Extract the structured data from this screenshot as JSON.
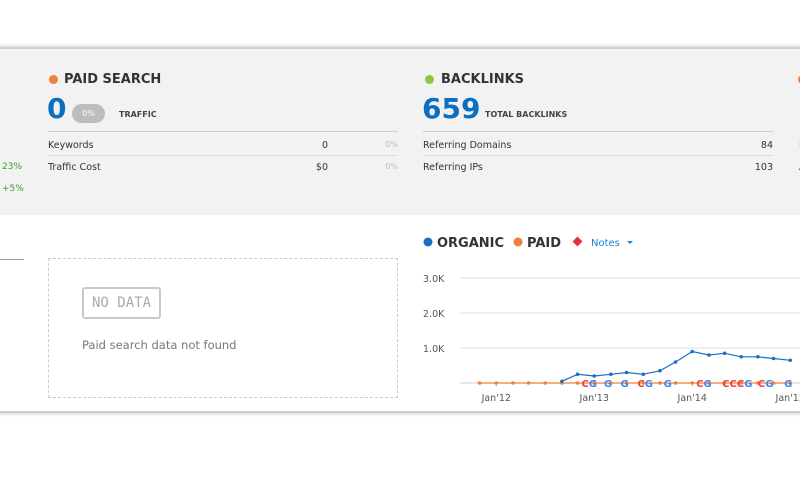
{
  "left_partial": {
    "changes": [
      "23%",
      "+5%"
    ]
  },
  "paid_search": {
    "title": "PAID SEARCH",
    "value": "0",
    "badge": "0%",
    "label": "TRAFFIC",
    "rows": [
      [
        "Keywords",
        "0",
        "0%"
      ],
      [
        "Traffic Cost",
        "$0",
        "0%"
      ]
    ]
  },
  "backlinks": {
    "title": "BACKLINKS",
    "value": "659",
    "label": "TOTAL BACKLINKS",
    "rows": [
      [
        "Referring Domains",
        "84"
      ],
      [
        "Referring IPs",
        "103"
      ]
    ]
  },
  "right_partial": {
    "rows": [
      "F",
      "A"
    ]
  },
  "no_data": {
    "badge": "NO DATA",
    "message": "Paid search data not found"
  },
  "chart_data": {
    "type": "line",
    "legend": {
      "notes": "Notes"
    },
    "x": [
      2011.83,
      2012.0,
      2012.17,
      2012.33,
      2012.5,
      2012.67,
      2012.83,
      2013.0,
      2013.17,
      2013.33,
      2013.5,
      2013.67,
      2013.83,
      2014.0,
      2014.17,
      2014.33,
      2014.5,
      2014.67,
      2014.83,
      2015.0
    ],
    "series": [
      {
        "name": "ORGANIC",
        "color": "#1a6fc4",
        "values": [
          null,
          null,
          null,
          null,
          null,
          50,
          250,
          200,
          250,
          300,
          250,
          350,
          600,
          900,
          800,
          850,
          750,
          750,
          700,
          650
        ]
      },
      {
        "name": "PAID",
        "color": "#f07f3c",
        "values": [
          0,
          0,
          0,
          0,
          0,
          0,
          0,
          0,
          0,
          0,
          0,
          0,
          0,
          0,
          0,
          0,
          0,
          0,
          0,
          0
        ]
      }
    ],
    "xlim": [
      2011.63,
      2015.1
    ],
    "xticks": [
      {
        "value": 2012,
        "label": "Jan'12"
      },
      {
        "value": 2013,
        "label": "Jan'13"
      },
      {
        "value": 2014,
        "label": "Jan'14"
      },
      {
        "value": 2015,
        "label": "Jan'15"
      }
    ],
    "ylim": [
      0,
      3000
    ],
    "yticks": [
      {
        "value": 1000,
        "label": "1.0K"
      },
      {
        "value": 2000,
        "label": "2.0K"
      },
      {
        "value": 3000,
        "label": "3.0K"
      }
    ],
    "grid": true,
    "annotations": [
      {
        "x": 2012.95,
        "label": "CG"
      },
      {
        "x": 2013.14,
        "label": "G"
      },
      {
        "x": 2013.31,
        "label": "G"
      },
      {
        "x": 2013.52,
        "label": "CG"
      },
      {
        "x": 2013.75,
        "label": "G"
      },
      {
        "x": 2014.12,
        "label": "CG"
      },
      {
        "x": 2014.46,
        "label": "CCCG"
      },
      {
        "x": 2014.75,
        "label": "CG"
      },
      {
        "x": 2014.98,
        "label": "G"
      }
    ]
  }
}
